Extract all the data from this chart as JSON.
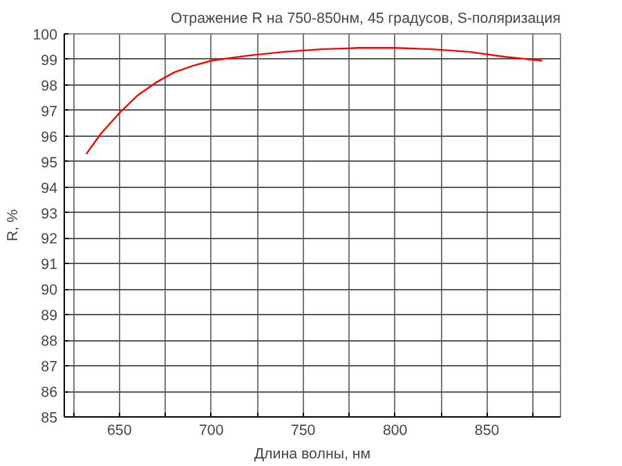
{
  "chart_data": {
    "type": "line",
    "title": "Отражение R на 750-850нм, 45 градусов, S-поляризация",
    "xlabel": "Длина волны, нм",
    "ylabel": "R, %",
    "x": [
      632,
      640,
      650,
      660,
      670,
      680,
      690,
      700,
      720,
      740,
      760,
      780,
      800,
      820,
      840,
      860,
      880
    ],
    "series": [
      {
        "color": "#ff0000",
        "values": [
          95.3,
          96.1,
          96.9,
          97.6,
          98.1,
          98.5,
          98.75,
          98.95,
          99.15,
          99.3,
          99.4,
          99.45,
          99.45,
          99.4,
          99.3,
          99.1,
          98.95
        ]
      }
    ],
    "xlim": [
      620,
      890
    ],
    "ylim": [
      85,
      100
    ],
    "xticks": [
      {
        "value": 625,
        "label": null
      },
      650,
      {
        "value": 675,
        "label": null
      },
      700,
      {
        "value": 725,
        "label": null
      },
      750,
      {
        "value": 775,
        "label": null
      },
      800,
      {
        "value": 825,
        "label": null
      },
      850,
      {
        "value": 875,
        "label": null
      }
    ],
    "yticks": [
      85,
      86,
      87,
      88,
      89,
      90,
      91,
      92,
      93,
      94,
      95,
      96,
      97,
      98,
      99,
      100
    ],
    "grid": true,
    "marker": "none",
    "line_style": "solid"
  }
}
